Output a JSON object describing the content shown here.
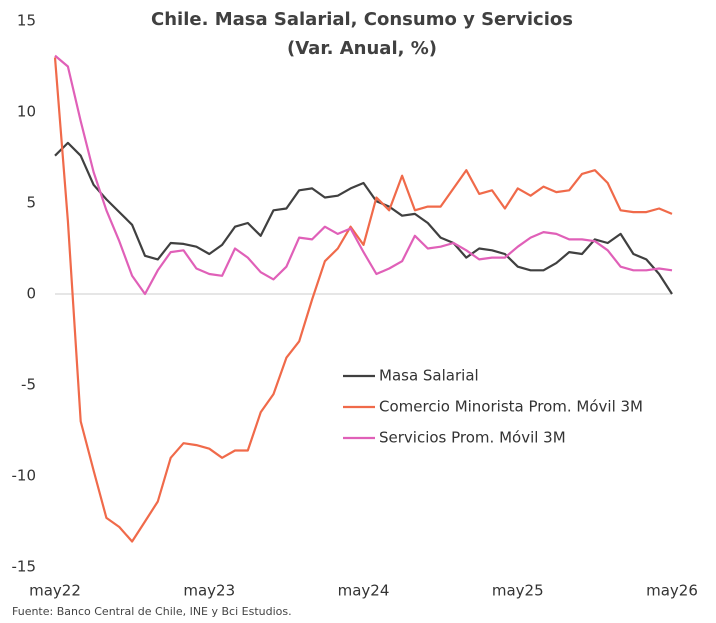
{
  "chart_data": {
    "type": "line",
    "title": "Chile. Masa Salarial, Consumo y Servicios",
    "subtitle": "(Var. Anual, %)",
    "source": "Fuente: Banco Central de Chile, INE y Bci Estudios.",
    "categories": [
      "may22",
      null,
      null,
      null,
      null,
      null,
      null,
      null,
      null,
      null,
      null,
      null,
      "may23",
      null,
      null,
      null,
      null,
      null,
      null,
      null,
      null,
      null,
      null,
      null,
      "may24",
      null,
      null,
      null,
      null,
      null,
      null,
      null,
      null,
      null,
      null,
      null,
      "may25",
      null,
      null,
      null,
      null,
      null,
      null,
      null,
      null,
      null,
      null,
      null,
      "may26"
    ],
    "series": [
      {
        "name": "Masa Salarial",
        "color": "#404040",
        "values": [
          7.6,
          8.3,
          7.6,
          6.0,
          5.2,
          4.5,
          3.8,
          2.1,
          1.9,
          2.8,
          2.75,
          2.6,
          2.2,
          2.7,
          3.7,
          3.9,
          3.2,
          4.6,
          4.7,
          5.7,
          5.8,
          5.3,
          5.4,
          5.8,
          6.1,
          5.1,
          4.8,
          4.3,
          4.4,
          3.9,
          3.1,
          2.8,
          2.0,
          2.5,
          2.4,
          2.2,
          1.5,
          1.3,
          1.3,
          1.7,
          2.3,
          2.2,
          3.0,
          2.8,
          3.3,
          2.2,
          1.9,
          1.1,
          0.0
        ]
      },
      {
        "name": "Comercio Minorista Prom. Móvil 3M",
        "color": "#f06a4a",
        "values": [
          13.0,
          4.0,
          -7.0,
          -9.7,
          -12.3,
          -12.8,
          -13.6,
          -12.5,
          -11.4,
          -9.0,
          -8.2,
          -8.3,
          -8.5,
          -9.0,
          -8.6,
          -8.6,
          -6.5,
          -5.5,
          -3.5,
          -2.6,
          -0.3,
          1.8,
          2.5,
          3.7,
          2.7,
          5.3,
          4.6,
          6.5,
          4.6,
          4.8,
          4.8,
          5.8,
          6.8,
          5.5,
          5.7,
          4.7,
          5.8,
          5.4,
          5.9,
          5.6,
          5.7,
          6.6,
          6.8,
          6.1,
          4.6,
          4.5,
          4.5,
          4.7,
          4.4
        ]
      },
      {
        "name": "Servicios Prom. Móvil 3M",
        "color": "#e060b8",
        "values": [
          13.1,
          12.5,
          9.5,
          6.7,
          4.6,
          2.9,
          1.0,
          0.0,
          1.3,
          2.3,
          2.4,
          1.4,
          1.1,
          1.0,
          2.5,
          2.0,
          1.2,
          0.8,
          1.5,
          3.1,
          3.0,
          3.7,
          3.3,
          3.6,
          2.3,
          1.1,
          1.4,
          1.8,
          3.2,
          2.5,
          2.6,
          2.8,
          2.4,
          1.9,
          2.0,
          2.0,
          2.6,
          3.1,
          3.4,
          3.3,
          3.0,
          3.0,
          2.9,
          2.4,
          1.5,
          1.3,
          1.3,
          1.4,
          1.3
        ]
      }
    ],
    "ylim": [
      -15,
      15
    ],
    "yticks": [
      -15,
      -10,
      -5,
      0,
      5,
      10,
      15
    ],
    "zero_line": true,
    "grid": false
  }
}
